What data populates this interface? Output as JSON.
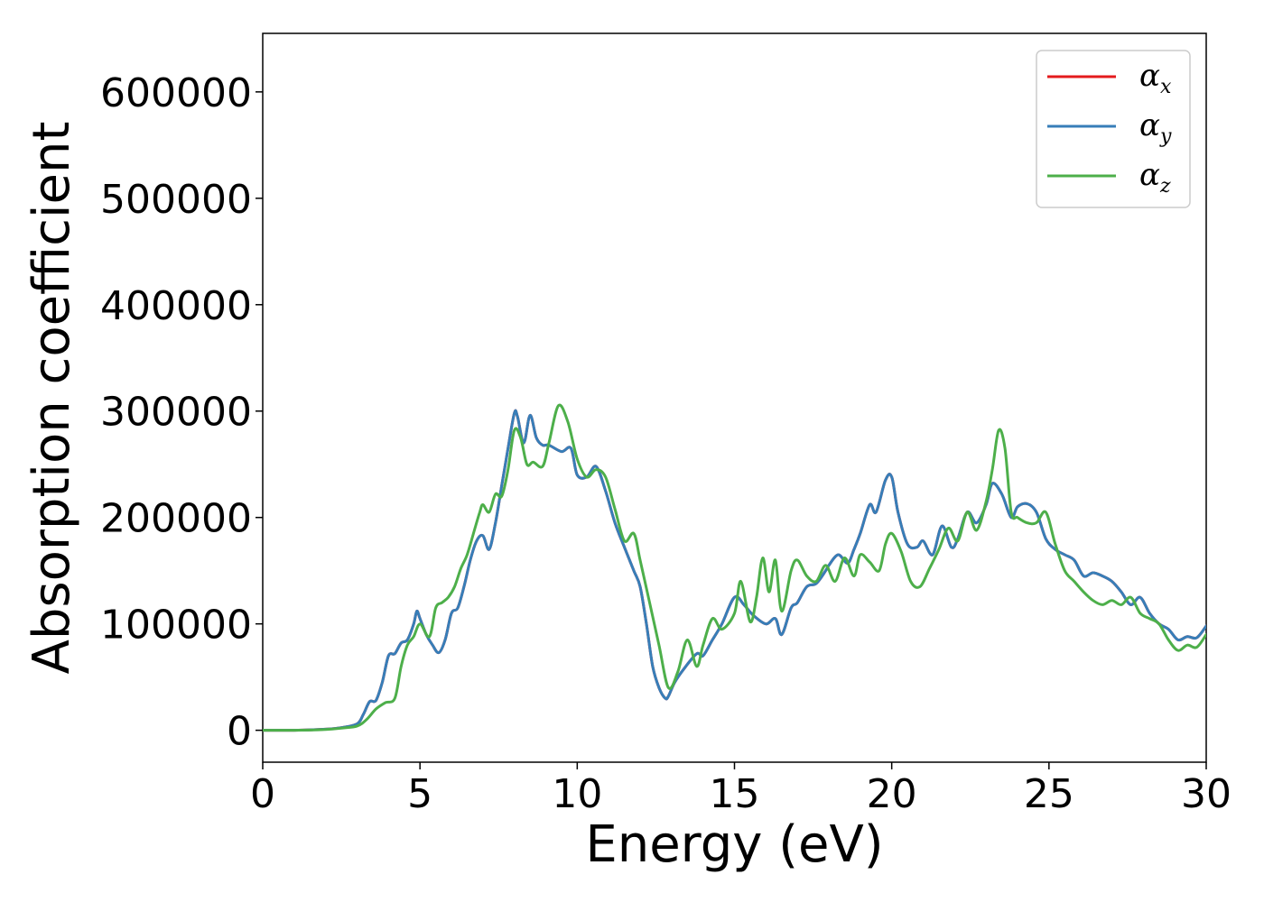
{
  "chart_data": {
    "type": "line",
    "title": "",
    "xlabel": "Energy (eV)",
    "ylabel": "Absorption coefficient",
    "xlim": [
      0,
      30
    ],
    "ylim": [
      -30000,
      655000
    ],
    "xticks": [
      0,
      5,
      10,
      15,
      20,
      25,
      30
    ],
    "yticks": [
      0,
      100000,
      200000,
      300000,
      400000,
      500000,
      600000
    ],
    "xtick_labels": [
      "0",
      "5",
      "10",
      "15",
      "20",
      "25",
      "30"
    ],
    "ytick_labels": [
      "0",
      "100000",
      "200000",
      "300000",
      "400000",
      "500000",
      "600000"
    ],
    "grid": false,
    "legend_position": "top-right",
    "series": [
      {
        "name": "α",
        "subscript": "x",
        "color": "#e41a1c",
        "x": [
          0,
          1,
          2,
          2.5,
          3,
          3.2,
          3.4,
          3.6,
          3.8,
          4.0,
          4.2,
          4.4,
          4.6,
          4.8,
          4.9,
          5.0,
          5.2,
          5.4,
          5.6,
          5.8,
          6.0,
          6.2,
          6.4,
          6.6,
          6.8,
          7.0,
          7.2,
          7.4,
          7.6,
          7.8,
          8.0,
          8.1,
          8.3,
          8.5,
          8.7,
          8.9,
          9.1,
          9.5,
          9.8,
          10.0,
          10.3,
          10.6,
          10.9,
          11.2,
          11.5,
          11.8,
          12.0,
          12.2,
          12.4,
          12.6,
          12.8,
          12.9,
          13.1,
          13.4,
          13.8,
          14.0,
          14.3,
          14.6,
          15.0,
          15.3,
          15.6,
          16.0,
          16.3,
          16.5,
          16.8,
          17.0,
          17.3,
          17.6,
          17.9,
          18.0,
          18.3,
          18.6,
          18.8,
          19.0,
          19.3,
          19.5,
          19.8,
          20.0,
          20.2,
          20.5,
          20.8,
          21.0,
          21.3,
          21.6,
          21.9,
          22.1,
          22.4,
          22.7,
          23.0,
          23.2,
          23.5,
          23.8,
          24.0,
          24.3,
          24.6,
          24.9,
          25.2,
          25.5,
          25.8,
          26.1,
          26.4,
          26.7,
          27.0,
          27.3,
          27.6,
          27.9,
          28.2,
          28.5,
          28.8,
          29.1,
          29.4,
          29.7,
          30.0
        ],
        "y": [
          0,
          0,
          1000,
          2500,
          6000,
          15000,
          27000,
          28000,
          45000,
          70000,
          72000,
          82000,
          85000,
          100000,
          112000,
          105000,
          90000,
          80000,
          73000,
          85000,
          110000,
          115000,
          135000,
          160000,
          178000,
          183000,
          170000,
          195000,
          230000,
          265000,
          298000,
          295000,
          270000,
          296000,
          275000,
          268000,
          268000,
          262000,
          265000,
          240000,
          238000,
          248000,
          225000,
          195000,
          172000,
          150000,
          135000,
          100000,
          60000,
          40000,
          30000,
          32000,
          45000,
          58000,
          72000,
          70000,
          85000,
          100000,
          125000,
          118000,
          108000,
          100000,
          105000,
          90000,
          115000,
          120000,
          135000,
          138000,
          150000,
          155000,
          165000,
          157000,
          170000,
          185000,
          212000,
          205000,
          235000,
          238000,
          205000,
          175000,
          172000,
          178000,
          165000,
          192000,
          172000,
          180000,
          205000,
          195000,
          212000,
          232000,
          222000,
          200000,
          210000,
          213000,
          205000,
          180000,
          170000,
          165000,
          160000,
          145000,
          148000,
          145000,
          140000,
          130000,
          118000,
          125000,
          110000,
          100000,
          95000,
          85000,
          88000,
          87000,
          98000
        ]
      },
      {
        "name": "α",
        "subscript": "y",
        "color": "#377eb8",
        "x": [
          0,
          1,
          2,
          2.5,
          3,
          3.2,
          3.4,
          3.6,
          3.8,
          4.0,
          4.2,
          4.4,
          4.6,
          4.8,
          4.9,
          5.0,
          5.2,
          5.4,
          5.6,
          5.8,
          6.0,
          6.2,
          6.4,
          6.6,
          6.8,
          7.0,
          7.2,
          7.4,
          7.6,
          7.8,
          8.0,
          8.1,
          8.3,
          8.5,
          8.7,
          8.9,
          9.1,
          9.5,
          9.8,
          10.0,
          10.3,
          10.6,
          10.9,
          11.2,
          11.5,
          11.8,
          12.0,
          12.2,
          12.4,
          12.6,
          12.8,
          12.9,
          13.1,
          13.4,
          13.8,
          14.0,
          14.3,
          14.6,
          15.0,
          15.3,
          15.6,
          16.0,
          16.3,
          16.5,
          16.8,
          17.0,
          17.3,
          17.6,
          17.9,
          18.0,
          18.3,
          18.6,
          18.8,
          19.0,
          19.3,
          19.5,
          19.8,
          20.0,
          20.2,
          20.5,
          20.8,
          21.0,
          21.3,
          21.6,
          21.9,
          22.1,
          22.4,
          22.7,
          23.0,
          23.2,
          23.5,
          23.8,
          24.0,
          24.3,
          24.6,
          24.9,
          25.2,
          25.5,
          25.8,
          26.1,
          26.4,
          26.7,
          27.0,
          27.3,
          27.6,
          27.9,
          28.2,
          28.5,
          28.8,
          29.1,
          29.4,
          29.7,
          30.0
        ],
        "y": [
          0,
          0,
          1000,
          2500,
          6000,
          15000,
          27000,
          28000,
          45000,
          70000,
          72000,
          82000,
          85000,
          100000,
          112000,
          105000,
          90000,
          80000,
          73000,
          85000,
          110000,
          115000,
          135000,
          160000,
          178000,
          183000,
          170000,
          195000,
          230000,
          265000,
          298000,
          295000,
          270000,
          296000,
          275000,
          268000,
          268000,
          262000,
          265000,
          240000,
          238000,
          248000,
          225000,
          195000,
          172000,
          150000,
          135000,
          100000,
          60000,
          40000,
          30000,
          32000,
          45000,
          58000,
          72000,
          70000,
          85000,
          100000,
          125000,
          118000,
          108000,
          100000,
          105000,
          90000,
          115000,
          120000,
          135000,
          138000,
          150000,
          155000,
          165000,
          157000,
          170000,
          185000,
          212000,
          205000,
          235000,
          238000,
          205000,
          175000,
          172000,
          178000,
          165000,
          192000,
          172000,
          180000,
          205000,
          195000,
          212000,
          232000,
          222000,
          200000,
          210000,
          213000,
          205000,
          180000,
          170000,
          165000,
          160000,
          145000,
          148000,
          145000,
          140000,
          130000,
          118000,
          125000,
          110000,
          100000,
          95000,
          85000,
          88000,
          87000,
          98000
        ]
      },
      {
        "name": "α",
        "subscript": "z",
        "color": "#4daf4a",
        "x": [
          0,
          1,
          2,
          2.5,
          3,
          3.3,
          3.6,
          3.9,
          4.2,
          4.4,
          4.6,
          4.8,
          5.0,
          5.3,
          5.5,
          5.7,
          5.9,
          6.1,
          6.3,
          6.5,
          6.7,
          6.9,
          7.0,
          7.2,
          7.4,
          7.6,
          7.8,
          8.0,
          8.2,
          8.4,
          8.6,
          8.9,
          9.1,
          9.4,
          9.7,
          10.0,
          10.3,
          10.6,
          10.9,
          11.2,
          11.5,
          11.8,
          12.0,
          12.3,
          12.6,
          12.9,
          13.2,
          13.5,
          13.8,
          14.0,
          14.3,
          14.6,
          15.0,
          15.2,
          15.5,
          15.7,
          15.9,
          16.1,
          16.3,
          16.5,
          16.8,
          17.0,
          17.3,
          17.6,
          17.9,
          18.2,
          18.5,
          18.8,
          19.0,
          19.3,
          19.6,
          19.8,
          20.0,
          20.3,
          20.6,
          20.9,
          21.2,
          21.5,
          21.8,
          22.1,
          22.4,
          22.7,
          23.0,
          23.2,
          23.4,
          23.6,
          23.8,
          24.0,
          24.3,
          24.6,
          24.9,
          25.2,
          25.5,
          25.8,
          26.1,
          26.4,
          26.7,
          27.0,
          27.3,
          27.6,
          27.9,
          28.2,
          28.5,
          28.8,
          29.1,
          29.4,
          29.7,
          30.0
        ],
        "y": [
          0,
          0,
          800,
          2000,
          4000,
          10000,
          20000,
          26000,
          30000,
          60000,
          80000,
          88000,
          100000,
          88000,
          115000,
          120000,
          125000,
          135000,
          152000,
          165000,
          185000,
          205000,
          212000,
          205000,
          222000,
          220000,
          245000,
          282000,
          275000,
          250000,
          252000,
          248000,
          270000,
          305000,
          290000,
          255000,
          238000,
          245000,
          238000,
          208000,
          178000,
          185000,
          160000,
          120000,
          80000,
          40000,
          55000,
          85000,
          60000,
          80000,
          105000,
          95000,
          110000,
          140000,
          102000,
          125000,
          162000,
          130000,
          160000,
          112000,
          150000,
          160000,
          145000,
          140000,
          155000,
          140000,
          162000,
          145000,
          165000,
          158000,
          150000,
          175000,
          185000,
          168000,
          140000,
          135000,
          152000,
          170000,
          190000,
          178000,
          205000,
          188000,
          215000,
          245000,
          282000,
          265000,
          205000,
          200000,
          195000,
          195000,
          205000,
          175000,
          150000,
          140000,
          130000,
          122000,
          118000,
          122000,
          118000,
          125000,
          110000,
          105000,
          100000,
          85000,
          75000,
          80000,
          78000,
          90000
        ]
      }
    ]
  }
}
